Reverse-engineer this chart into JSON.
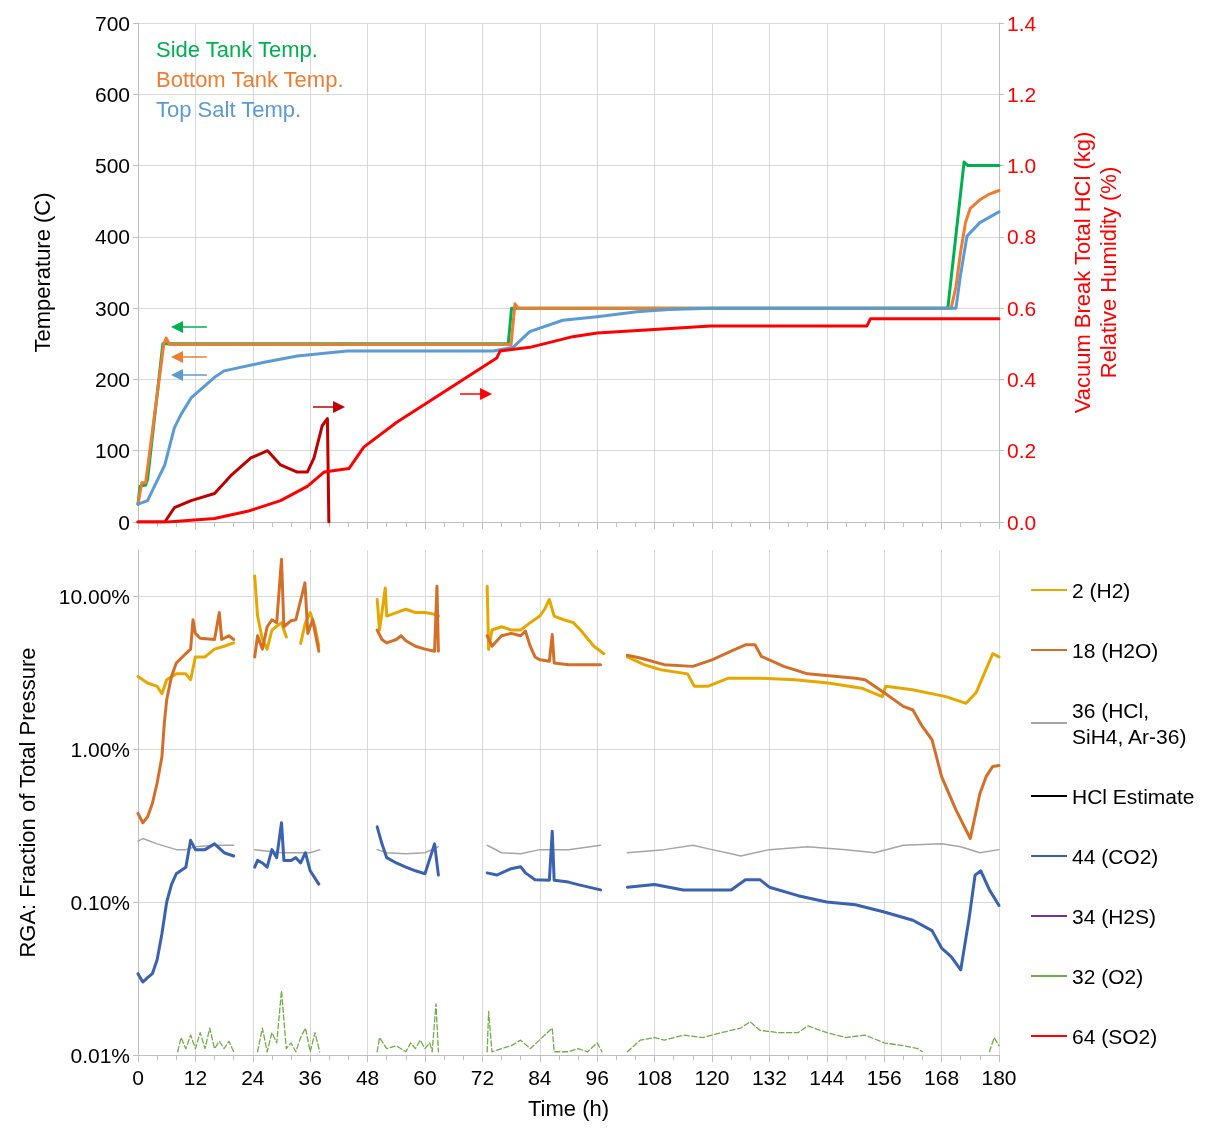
{
  "chart_data": [
    {
      "type": "line",
      "ylabel": "Temperature (C)",
      "y2label": "Vacuum Break Total HCl (kg)\nRelative Humidity (%)",
      "xlim": [
        0,
        180
      ],
      "xticks": [
        0,
        12,
        24,
        36,
        48,
        60,
        72,
        84,
        96,
        108,
        120,
        132,
        144,
        156,
        168,
        180
      ],
      "ylim": [
        0,
        700
      ],
      "yticks": [
        0,
        100,
        200,
        300,
        400,
        500,
        600,
        700
      ],
      "y2lim": [
        0,
        1.4
      ],
      "y2ticks": [
        {
          "value": 0,
          "label": "0.0"
        },
        0.2,
        0.4,
        0.6,
        0.8,
        {
          "value": 1,
          "label": "1.0"
        },
        1.2,
        1.4
      ],
      "tick_labels": "y",
      "grid": true,
      "legend": "top left",
      "marker": "none",
      "series": [
        {
          "name": "Side Tank Temp.",
          "color": "#00b050",
          "x": [
            0,
            0.4,
            1.6,
            2,
            5.2,
            77.4,
            78.1,
            169.3,
            172.7,
            173.5,
            180
          ],
          "values": [
            25,
            50,
            52,
            60,
            250,
            250,
            300,
            300,
            505,
            500,
            500
          ]
        },
        {
          "name": "Bottom Tank Temp.",
          "color": "#ed7d31",
          "x": [
            0,
            0.8,
            1.6,
            5.4,
            5.9,
            6.6,
            78,
            78.8,
            79.5,
            170,
            171,
            172,
            173,
            174,
            176,
            178,
            180
          ],
          "values": [
            25,
            55,
            55,
            250,
            258,
            249,
            249,
            306,
            300,
            300,
            330,
            380,
            420,
            440,
            452,
            460,
            465
          ]
        },
        {
          "name": "Top Salt Temp.",
          "color": "#5b9bd5",
          "x": [
            0,
            2,
            3.5,
            5.6,
            7.6,
            9,
            11.1,
            16,
            18,
            26.4,
            33.3,
            43.7,
            74.3,
            78.4,
            81.9,
            88.8,
            96,
            104.3,
            111,
            120,
            171,
            171.9,
            173.3,
            176,
            180
          ],
          "values": [
            25,
            30,
            51,
            80,
            132,
            151,
            174,
            203,
            212,
            224,
            233,
            240,
            240,
            245,
            267,
            283,
            288,
            295,
            298,
            300,
            300,
            344,
            401,
            420,
            435
          ]
        },
        {
          "color": "#c00000",
          "axis": "y2",
          "x": [
            0,
            5.6,
            7.6,
            11.1,
            16,
            19.4,
            23.6,
            27.1,
            29.8,
            33.3,
            35.4,
            36.8,
            38.5,
            39.6,
            39.9
          ],
          "values": [
            0,
            0,
            0.04,
            0.06,
            0.08,
            0.13,
            0.18,
            0.2,
            0.16,
            0.14,
            0.14,
            0.18,
            0.27,
            0.29,
            0
          ]
        },
        {
          "color": "#ff0000",
          "axis": "y2",
          "x": [
            0,
            6.2,
            16,
            22.9,
            29.8,
            35.4,
            38.9,
            44.1,
            47.2,
            54.1,
            61.1,
            68,
            75,
            75.7,
            81.9,
            90.9,
            96,
            107.9,
            119.7,
            131.6,
            144.1,
            152.4,
            153.1,
            167,
            180
          ],
          "values": [
            0,
            0,
            0.01,
            0.03,
            0.06,
            0.1,
            0.14,
            0.15,
            0.21,
            0.28,
            0.34,
            0.4,
            0.46,
            0.48,
            0.49,
            0.52,
            0.53,
            0.54,
            0.55,
            0.55,
            0.55,
            0.55,
            0.57,
            0.57,
            0.57
          ]
        }
      ]
    },
    {
      "type": "line",
      "xlabel": "Time (h)",
      "ylabel": "RGA: Fraction of Total Pressure",
      "xlim": [
        0,
        180
      ],
      "xticks": [
        0,
        12,
        24,
        36,
        48,
        60,
        72,
        84,
        96,
        108,
        120,
        132,
        144,
        156,
        168,
        180
      ],
      "ylim": [
        0.01,
        20
      ],
      "yticks": [
        {
          "value": 0.01,
          "label": "0.01%"
        },
        {
          "value": 0.1,
          "label": "0.10%"
        },
        {
          "value": 1,
          "label": "1.00%"
        },
        {
          "value": 10,
          "label": "10.00%"
        }
      ],
      "log": "y",
      "grid": true,
      "legend": "right",
      "marker": "none",
      "series": [
        {
          "name": "2 (H2)",
          "color": "#e6a800",
          "x": [
            0,
            2,
            4,
            5,
            6,
            8,
            10,
            11,
            12,
            14,
            16,
            18,
            20,
            22,
            24.4,
            25,
            26,
            27,
            28,
            30,
            31,
            33,
            34,
            35,
            36,
            37,
            37.8,
            44,
            50,
            50.5,
            51.7,
            52,
            54,
            56,
            58,
            60,
            62,
            62.8,
            68,
            73,
            73.3,
            74,
            76,
            78,
            80,
            82,
            84,
            85,
            86,
            87,
            89,
            91,
            92.5,
            95.3,
            97.4,
            100,
            102.3,
            105.8,
            109.3,
            114.9,
            116.3,
            119.1,
            123.3,
            130.3,
            137.3,
            144.3,
            151.3,
            155.6,
            156.3,
            161.9,
            168.9,
            173.1,
            175.2,
            178.7,
            180
          ],
          "values": [
            2.98,
            2.7,
            2.57,
            2.3,
            2.84,
            3.1,
            3.1,
            2.84,
            4.0,
            4.0,
            4.5,
            4.7,
            4.94,
            null,
            13.5,
            7.4,
            5.2,
            4.5,
            6.0,
            6.7,
            5.4,
            null,
            4.9,
            6.7,
            7.8,
            6.3,
            4.7,
            null,
            9.5,
            6.0,
            11.3,
            7.4,
            7.8,
            8.2,
            7.8,
            7.8,
            7.6,
            7.4,
            null,
            11.6,
            4.47,
            6.0,
            6.3,
            6.0,
            6.0,
            6.7,
            7.4,
            8.2,
            9.5,
            7.4,
            7.0,
            6.7,
            6.0,
            4.7,
            4.2,
            null,
            4.0,
            3.56,
            3.3,
            3.1,
            2.57,
            2.57,
            2.9,
            2.9,
            2.84,
            2.7,
            2.5,
            2.2,
            2.57,
            2.44,
            2.2,
            1.99,
            2.33,
            4.2,
            4.0
          ]
        },
        {
          "name": "18 (H2O)",
          "color": "#d46f2a",
          "x": [
            0,
            1,
            2,
            3,
            4,
            5,
            5.5,
            6,
            7,
            8,
            10,
            11,
            11.5,
            12,
            13,
            16,
            17,
            17.5,
            19,
            20,
            22,
            24.4,
            25,
            26,
            27,
            28,
            29,
            30,
            30.5,
            32,
            33,
            34.9,
            35.5,
            36.5,
            37.8,
            44,
            50,
            51,
            52,
            54,
            55,
            56,
            58,
            60,
            62,
            62.5,
            62.8,
            68,
            73,
            74,
            76,
            78,
            80,
            81,
            82,
            83,
            84,
            86,
            86.6,
            87,
            90,
            92,
            96.7,
            100,
            102.3,
            105,
            110,
            116,
            120,
            124,
            127,
            129,
            130.3,
            135,
            140,
            145,
            150,
            152,
            156,
            160,
            162,
            164,
            166,
            168,
            171,
            174,
            176,
            177.3,
            178.7,
            180
          ],
          "values": [
            0.38,
            0.33,
            0.36,
            0.44,
            0.6,
            0.89,
            1.47,
            2.1,
            2.98,
            3.65,
            4.2,
            4.5,
            7.0,
            5.7,
            5.3,
            5.2,
            7.8,
            5.2,
            5.5,
            5.2,
            null,
            4.0,
            5.5,
            4.5,
            6.3,
            7.0,
            6.7,
            17.4,
            6.3,
            6.9,
            7.0,
            12.2,
            5.7,
            7.0,
            4.36,
            null,
            6.0,
            5.2,
            4.94,
            5.2,
            5.5,
            5.1,
            4.7,
            4.5,
            4.36,
            11.6,
            4.36,
            null,
            5.5,
            4.7,
            5.5,
            5.7,
            5.5,
            5.9,
            4.7,
            4.0,
            3.83,
            3.75,
            5.6,
            3.65,
            3.56,
            3.56,
            3.56,
            null,
            4.1,
            3.94,
            3.56,
            3.47,
            3.83,
            4.36,
            4.8,
            4.8,
            4.04,
            3.47,
            3.1,
            3.0,
            2.9,
            2.84,
            2.33,
            1.9,
            1.8,
            1.4,
            1.15,
            0.66,
            0.4,
            0.26,
            0.51,
            0.66,
            0.77,
            0.78
          ]
        },
        {
          "name": "36 (HCl, SiH4, Ar-36)",
          "color": "#a5a5a5",
          "x": [
            0,
            1,
            4,
            8,
            10,
            12,
            16,
            20,
            22,
            24.4,
            30,
            36,
            38,
            44,
            50,
            52,
            56,
            60,
            62.8,
            68,
            73,
            76,
            80,
            84,
            90,
            96.7,
            100,
            102.3,
            110,
            116,
            120,
            124,
            126,
            132,
            140,
            148,
            154,
            160,
            168,
            172,
            176,
            180
          ],
          "values": [
            0.25,
            0.26,
            0.24,
            0.22,
            0.22,
            0.23,
            0.235,
            0.235,
            null,
            0.22,
            0.21,
            0.21,
            0.22,
            null,
            0.22,
            0.21,
            0.207,
            0.21,
            0.23,
            null,
            0.235,
            0.21,
            0.207,
            0.22,
            0.22,
            0.235,
            null,
            0.21,
            0.22,
            0.235,
            0.22,
            0.207,
            0.2,
            0.22,
            0.23,
            0.22,
            0.21,
            0.235,
            0.24,
            0.23,
            0.21,
            0.22
          ]
        },
        {
          "name": "HCl Estimate",
          "color": "#000000"
        },
        {
          "name": "44 (CO2)",
          "color": "#3a62b0",
          "x": [
            0,
            1,
            2,
            3,
            4,
            5,
            6,
            7,
            8,
            10,
            11,
            12,
            14,
            16,
            18,
            20,
            22,
            24.4,
            25,
            26,
            27,
            28,
            29,
            30,
            30.5,
            32,
            33,
            34,
            35,
            36,
            37.8,
            44,
            50,
            51,
            52,
            54,
            56,
            58,
            60,
            62,
            62.8,
            68,
            73,
            75,
            78,
            80,
            81,
            83,
            86,
            86.6,
            87,
            90,
            92,
            96.7,
            100,
            102.3,
            108,
            114,
            120,
            124,
            127,
            130,
            132,
            138,
            144,
            150,
            156,
            162,
            166,
            168,
            170,
            172,
            173.8,
            175,
            176.2,
            178,
            180
          ],
          "values": [
            0.034,
            0.03,
            0.032,
            0.034,
            0.042,
            0.062,
            0.1,
            0.13,
            0.153,
            0.169,
            0.253,
            0.22,
            0.22,
            0.24,
            0.21,
            0.2,
            null,
            0.169,
            0.187,
            0.18,
            0.169,
            0.22,
            0.195,
            0.33,
            0.187,
            0.187,
            0.195,
            0.18,
            0.21,
            0.16,
            0.131,
            null,
            0.31,
            0.24,
            0.195,
            0.18,
            0.169,
            0.16,
            0.153,
            0.24,
            0.15,
            null,
            0.155,
            0.15,
            0.165,
            0.17,
            0.155,
            0.14,
            0.139,
            0.29,
            0.139,
            0.135,
            0.13,
            0.12,
            null,
            0.125,
            0.13,
            0.12,
            0.12,
            0.12,
            0.14,
            0.14,
            0.125,
            0.11,
            0.1,
            0.096,
            0.086,
            0.076,
            0.065,
            0.05,
            0.044,
            0.036,
            0.08,
            0.15,
            0.16,
            0.12,
            0.095
          ]
        },
        {
          "name": "34 (H2S)",
          "color": "#7030a0"
        },
        {
          "name": "32 (O2)",
          "color": "#70ad47",
          "line_style": "dashed",
          "x": [
            8.3,
            9,
            10,
            11,
            12,
            13,
            14,
            15,
            16,
            17,
            18,
            19,
            20,
            22,
            25,
            26,
            27,
            28,
            29,
            30,
            31,
            32,
            33,
            34,
            35,
            36,
            37,
            38,
            44,
            50,
            50.5,
            52,
            54,
            56,
            57,
            58,
            59,
            60,
            61,
            61.5,
            62.3,
            62.8,
            68,
            73,
            73.3,
            74,
            76,
            78,
            80,
            82,
            86.6,
            87,
            90,
            92,
            94,
            96,
            97,
            100,
            102.3,
            105,
            108,
            110,
            114,
            118,
            122,
            126,
            128,
            130,
            134,
            138,
            140,
            144,
            148,
            152,
            156,
            160,
            163,
            164,
            170,
            178,
            179,
            180
          ],
          "values": [
            0.0105,
            0.013,
            0.011,
            0.0135,
            0.011,
            0.014,
            0.011,
            0.015,
            0.011,
            0.0123,
            0.011,
            0.0123,
            0.0105,
            null,
            0.0105,
            0.015,
            0.0105,
            0.014,
            0.012,
            0.0263,
            0.011,
            0.012,
            0.0105,
            0.013,
            0.015,
            0.0105,
            0.014,
            0.0105,
            null,
            0.0105,
            0.013,
            0.011,
            0.0115,
            0.0105,
            0.012,
            0.011,
            0.0125,
            0.011,
            0.012,
            0.0105,
            0.0216,
            0.0105,
            null,
            0.0105,
            0.0193,
            0.0105,
            0.011,
            0.0115,
            0.0125,
            0.011,
            0.015,
            0.0105,
            0.0105,
            0.011,
            0.0105,
            0.012,
            0.0105,
            null,
            0.0105,
            0.0125,
            0.013,
            0.0125,
            0.0135,
            0.013,
            0.014,
            0.015,
            0.0165,
            0.0145,
            0.014,
            0.014,
            0.0155,
            0.014,
            0.013,
            0.0135,
            0.012,
            0.0115,
            0.011,
            0.0105,
            null,
            0.0105,
            0.013,
            0.0115
          ]
        },
        {
          "name": "64 (SO2)",
          "color": "#ff0000"
        }
      ]
    }
  ]
}
